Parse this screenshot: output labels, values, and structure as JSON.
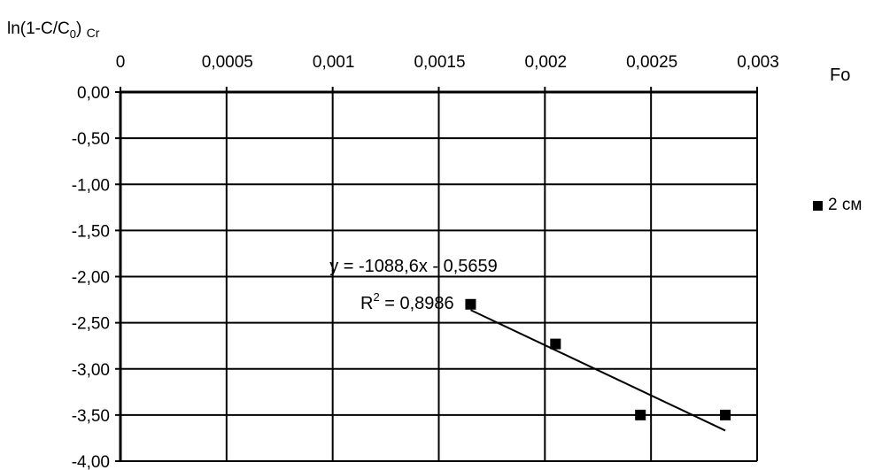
{
  "chart_data": {
    "type": "scatter",
    "title": "",
    "xlabel": "Fo",
    "ylabel": {
      "main": "ln(1-C/C",
      "sub_index": "0",
      "close": ")",
      "subscript": "Cr"
    },
    "x_axis_position": "top",
    "xlim": [
      0,
      0.003
    ],
    "ylim": [
      -4.0,
      0.0
    ],
    "x_ticks": [
      "0",
      "0,0005",
      "0,001",
      "0,0015",
      "0,002",
      "0,0025",
      "0,003"
    ],
    "x_tick_values": [
      0,
      0.0005,
      0.001,
      0.0015,
      0.002,
      0.0025,
      0.003
    ],
    "y_ticks": [
      "0,00",
      "-0,50",
      "-1,00",
      "-1,50",
      "-2,00",
      "-2,50",
      "-3,00",
      "-3,50",
      "-4,00"
    ],
    "y_tick_values": [
      0,
      -0.5,
      -1.0,
      -1.5,
      -2.0,
      -2.5,
      -3.0,
      -3.5,
      -4.0
    ],
    "grid": true,
    "legend_position": "right",
    "series": [
      {
        "name": "2 см",
        "marker": "square",
        "color": "#000000",
        "x": [
          0.00165,
          0.00205,
          0.00245,
          0.00285
        ],
        "y": [
          -2.3,
          -2.73,
          -3.5,
          -3.5
        ]
      }
    ],
    "trendline": {
      "equation": "y = -1088,6x - 0,5659",
      "r2_label": "R",
      "r2_sup": "2",
      "r2_value": " = 0,8986",
      "slope": -1088.6,
      "intercept": -0.5659,
      "x_range": [
        0.00165,
        0.00285
      ]
    }
  }
}
